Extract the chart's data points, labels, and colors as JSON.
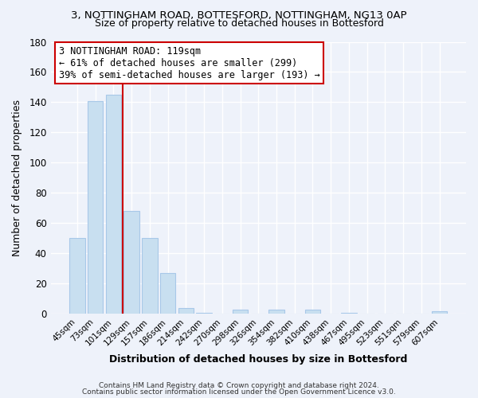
{
  "title_line1": "3, NOTTINGHAM ROAD, BOTTESFORD, NOTTINGHAM, NG13 0AP",
  "title_line2": "Size of property relative to detached houses in Bottesford",
  "xlabel": "Distribution of detached houses by size in Bottesford",
  "ylabel": "Number of detached properties",
  "bar_labels": [
    "45sqm",
    "73sqm",
    "101sqm",
    "129sqm",
    "157sqm",
    "186sqm",
    "214sqm",
    "242sqm",
    "270sqm",
    "298sqm",
    "326sqm",
    "354sqm",
    "382sqm",
    "410sqm",
    "438sqm",
    "467sqm",
    "495sqm",
    "523sqm",
    "551sqm",
    "579sqm",
    "607sqm"
  ],
  "bar_values": [
    50,
    141,
    145,
    68,
    50,
    27,
    4,
    1,
    0,
    3,
    0,
    3,
    0,
    3,
    0,
    1,
    0,
    0,
    0,
    0,
    2
  ],
  "bar_color": "#c8dff0",
  "bar_edge_color": "#a8c8e8",
  "vline_x": 2.5,
  "vline_color": "#cc0000",
  "annotation_title": "3 NOTTINGHAM ROAD: 119sqm",
  "annotation_line1": "← 61% of detached houses are smaller (299)",
  "annotation_line2": "39% of semi-detached houses are larger (193) →",
  "annotation_box_color": "#ffffff",
  "annotation_box_edge": "#cc0000",
  "ylim": [
    0,
    180
  ],
  "yticks": [
    0,
    20,
    40,
    60,
    80,
    100,
    120,
    140,
    160,
    180
  ],
  "footer_line1": "Contains HM Land Registry data © Crown copyright and database right 2024.",
  "footer_line2": "Contains public sector information licensed under the Open Government Licence v3.0.",
  "bg_color": "#eef2fa",
  "grid_color": "#ffffff",
  "plot_bg": "#eef2fa"
}
